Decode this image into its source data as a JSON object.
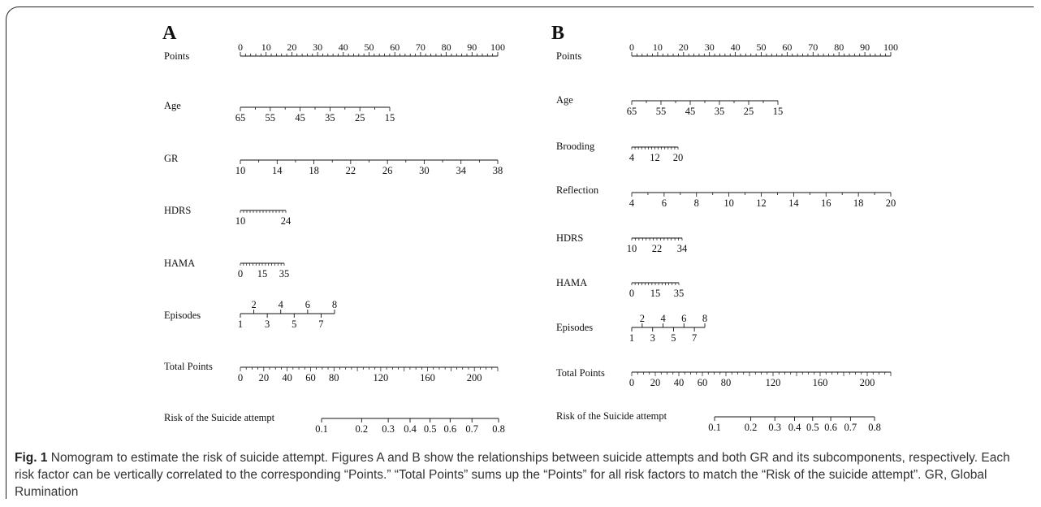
{
  "caption": {
    "label": "Fig. 1",
    "text": "Nomogram to estimate the risk of suicide attempt. Figures A and B show the relationships between suicide attempts and both GR and its subcomponents, respectively. Each risk factor can be vertically correlated to the corresponding “Points.” “Total Points” sums up the “Points” for all risk factors to match the “Risk of the suicide attempt”. GR, Global Rumination"
  },
  "chart_data": [
    {
      "type": "nomogram",
      "panel": "A",
      "rows": [
        {
          "name": "Points",
          "ticks": [
            "0",
            "10",
            "20",
            "30",
            "40",
            "50",
            "60",
            "70",
            "80",
            "90",
            "100"
          ],
          "points_range": [
            0,
            100
          ]
        },
        {
          "name": "Age",
          "ticks": [
            "65",
            "55",
            "45",
            "35",
            "25",
            "15"
          ],
          "points_range": [
            0,
            57
          ]
        },
        {
          "name": "GR",
          "ticks": [
            "10",
            "14",
            "18",
            "22",
            "26",
            "30",
            "34",
            "38"
          ],
          "points_range": [
            0,
            100
          ]
        },
        {
          "name": "HDRS",
          "ticks": [
            "10",
            "24"
          ],
          "points_range": [
            0,
            18
          ]
        },
        {
          "name": "HAMA",
          "ticks": [
            "0",
            "15",
            "35"
          ],
          "points_range": [
            0,
            17
          ]
        },
        {
          "name": "Episodes",
          "ticks_top": [
            "2",
            "4",
            "6",
            "8"
          ],
          "ticks_bottom": [
            "1",
            "3",
            "5",
            "7"
          ],
          "points_range": [
            0,
            36
          ]
        },
        {
          "name": "Total Points",
          "ticks": [
            "0",
            "20",
            "40",
            "60",
            "80",
            "120",
            "160",
            "200"
          ],
          "range": [
            0,
            220
          ]
        },
        {
          "name": "Risk of the Suicide attempt",
          "ticks": [
            "0.1",
            "0.2",
            "0.3",
            "0.4",
            "0.5",
            "0.6",
            "0.7",
            "0.8"
          ]
        }
      ]
    },
    {
      "type": "nomogram",
      "panel": "B",
      "rows": [
        {
          "name": "Points",
          "ticks": [
            "0",
            "10",
            "20",
            "30",
            "40",
            "50",
            "60",
            "70",
            "80",
            "90",
            "100"
          ],
          "points_range": [
            0,
            100
          ]
        },
        {
          "name": "Age",
          "ticks": [
            "65",
            "55",
            "45",
            "35",
            "25",
            "15"
          ],
          "points_range": [
            0,
            57
          ]
        },
        {
          "name": "Brooding",
          "ticks": [
            "4",
            "12",
            "20"
          ],
          "points_range": [
            0,
            18
          ]
        },
        {
          "name": "Reflection",
          "ticks": [
            "4",
            "6",
            "8",
            "10",
            "12",
            "14",
            "16",
            "18",
            "20"
          ],
          "points_range": [
            0,
            100
          ]
        },
        {
          "name": "HDRS",
          "ticks": [
            "10",
            "22",
            "34"
          ],
          "points_range": [
            0,
            19
          ]
        },
        {
          "name": "HAMA",
          "ticks": [
            "0",
            "15",
            "35"
          ],
          "points_range": [
            0,
            18
          ]
        },
        {
          "name": "Episodes",
          "ticks_top": [
            "2",
            "4",
            "6",
            "8"
          ],
          "ticks_bottom": [
            "1",
            "3",
            "5",
            "7"
          ],
          "points_range": [
            0,
            29
          ]
        },
        {
          "name": "Total Points",
          "ticks": [
            "0",
            "20",
            "40",
            "60",
            "80",
            "120",
            "160",
            "200"
          ],
          "range": [
            0,
            220
          ]
        },
        {
          "name": "Risk of the Suicide attempt",
          "ticks": [
            "0.1",
            "0.2",
            "0.3",
            "0.4",
            "0.5",
            "0.6",
            "0.7",
            "0.8"
          ]
        }
      ]
    }
  ]
}
